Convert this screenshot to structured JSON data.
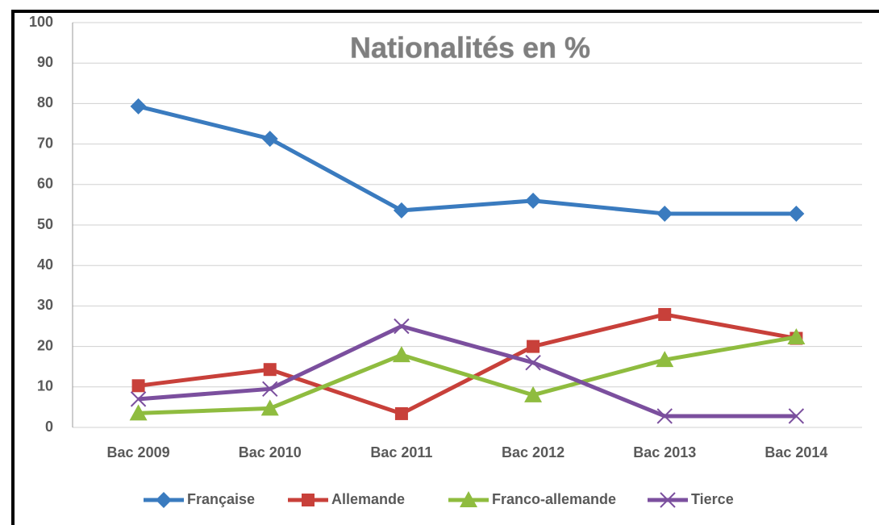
{
  "chart_data": {
    "type": "line",
    "title": "Nationalités en %",
    "categories": [
      "Bac 2009",
      "Bac 2010",
      "Bac 2011",
      "Bac 2012",
      "Bac 2013",
      "Bac 2014"
    ],
    "series": [
      {
        "name": "Française",
        "color": "#3a7bbf",
        "marker": "diamond",
        "values": [
          79.3,
          71.3,
          53.6,
          56,
          52.8,
          52.8
        ]
      },
      {
        "name": "Allemande",
        "color": "#c8403a",
        "marker": "square",
        "values": [
          10.3,
          14.3,
          3.4,
          20,
          27.9,
          22
        ]
      },
      {
        "name": "Franco-allemande",
        "color": "#8fbc3f",
        "marker": "triangle",
        "values": [
          3.5,
          4.7,
          17.9,
          8,
          16.7,
          22.3
        ]
      },
      {
        "name": "Tierce",
        "color": "#7b4f9e",
        "marker": "x",
        "values": [
          7,
          9.5,
          25,
          16,
          2.8,
          2.8
        ]
      }
    ],
    "ylim": [
      0,
      100
    ],
    "yticks": [
      0,
      10,
      20,
      30,
      40,
      50,
      60,
      70,
      80,
      90,
      100
    ],
    "grid": true,
    "legend": "bottom"
  }
}
